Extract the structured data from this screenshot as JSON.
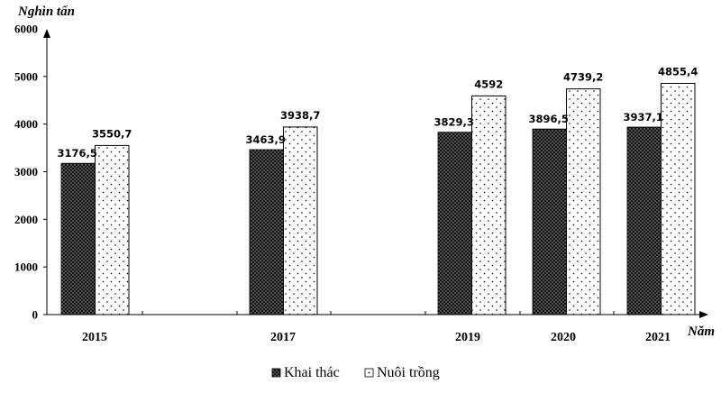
{
  "chart_data": {
    "type": "bar",
    "title": "",
    "xlabel": "Năm",
    "ylabel": "Nghìn tấn",
    "ylim": [
      0,
      6000
    ],
    "yticks": [
      0,
      1000,
      2000,
      3000,
      4000,
      5000,
      6000
    ],
    "categories": [
      "2015",
      "2017",
      "2019",
      "2020",
      "2021"
    ],
    "series": [
      {
        "name": "Khai thác",
        "values": [
          3176.5,
          3463.9,
          3829.3,
          3896.5,
          3937.1
        ],
        "labels": [
          "3176,5",
          "3463,9",
          "3829,3",
          "3896,5",
          "3937,1"
        ],
        "pattern": "dense-dark-dots"
      },
      {
        "name": "Nuôi trồng",
        "values": [
          3550.7,
          3938.7,
          4592,
          4739.2,
          4855.4
        ],
        "labels": [
          "3550,7",
          "3938,7",
          "4592",
          "4739,2",
          "4855,4"
        ],
        "pattern": "sparse-dots"
      }
    ],
    "grid": false,
    "legend_position": "bottom"
  },
  "legend": {
    "items": [
      {
        "label": "Khai thác",
        "icon": "dark-dotted-square"
      },
      {
        "label": "Nuôi trồng",
        "icon": "light-dotted-square"
      }
    ]
  },
  "colors": {
    "axis": "#000000",
    "bar_dark": "#111111",
    "bar_light": "#ffffff"
  }
}
